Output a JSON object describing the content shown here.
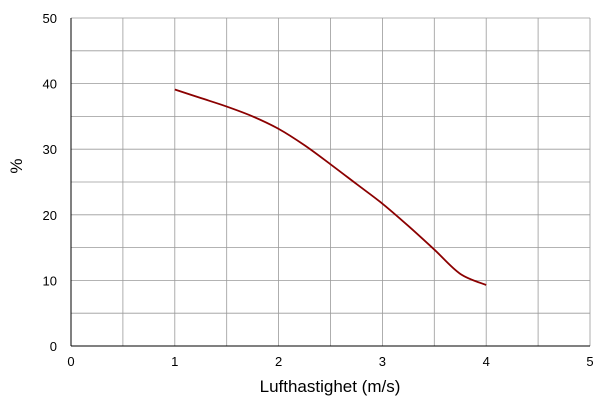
{
  "chart_data": {
    "type": "line",
    "title": "",
    "xlabel": "Lufthastighet (m/s)",
    "ylabel": "%",
    "xlim": [
      0,
      5
    ],
    "ylim": [
      0,
      50
    ],
    "x_ticks": [
      0,
      1,
      2,
      3,
      4,
      5
    ],
    "y_ticks": [
      0,
      10,
      20,
      30,
      40,
      50
    ],
    "x_tick_labels": [
      "0",
      "1",
      "2",
      "3",
      "4",
      "5"
    ],
    "y_tick_labels": [
      "0",
      "10",
      "20",
      "30",
      "40",
      "50"
    ],
    "x_minor_step": 0.5,
    "y_minor_step": 5,
    "grid": true,
    "legend": "none",
    "series": [
      {
        "color": "#8b0000",
        "x": [
          1.0,
          1.25,
          1.5,
          1.75,
          2.0,
          2.25,
          2.5,
          2.75,
          3.0,
          3.25,
          3.5,
          3.75,
          4.0
        ],
        "y": [
          39.1,
          37.8,
          36.5,
          35.0,
          33.1,
          30.6,
          27.7,
          24.7,
          21.7,
          18.3,
          14.7,
          11.0,
          9.3
        ]
      }
    ]
  }
}
